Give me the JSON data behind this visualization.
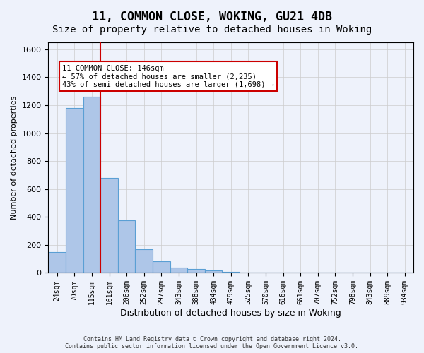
{
  "title": "11, COMMON CLOSE, WOKING, GU21 4DB",
  "subtitle": "Size of property relative to detached houses in Woking",
  "xlabel": "Distribution of detached houses by size in Woking",
  "ylabel": "Number of detached properties",
  "footer_line1": "Contains HM Land Registry data © Crown copyright and database right 2024.",
  "footer_line2": "Contains public sector information licensed under the Open Government Licence v3.0.",
  "bin_labels": [
    "24sqm",
    "70sqm",
    "115sqm",
    "161sqm",
    "206sqm",
    "252sqm",
    "297sqm",
    "343sqm",
    "388sqm",
    "434sqm",
    "479sqm",
    "525sqm",
    "570sqm",
    "616sqm",
    "661sqm",
    "707sqm",
    "752sqm",
    "798sqm",
    "843sqm",
    "889sqm",
    "934sqm"
  ],
  "bar_values": [
    150,
    1180,
    1260,
    680,
    375,
    170,
    85,
    40,
    30,
    20,
    5,
    0,
    0,
    0,
    0,
    0,
    0,
    0,
    0,
    0,
    0
  ],
  "bar_color": "#aec6e8",
  "bar_edge_color": "#5a9fd4",
  "vline_x_index": 2.5,
  "vline_color": "#cc0000",
  "annotation_text": "11 COMMON CLOSE: 146sqm\n← 57% of detached houses are smaller (2,235)\n43% of semi-detached houses are larger (1,698) →",
  "annotation_box_color": "#cc0000",
  "ylim": [
    0,
    1650
  ],
  "yticks": [
    0,
    200,
    400,
    600,
    800,
    1000,
    1200,
    1400,
    1600
  ],
  "grid_color": "#cccccc",
  "background_color": "#eef2fb",
  "title_fontsize": 12,
  "subtitle_fontsize": 10
}
